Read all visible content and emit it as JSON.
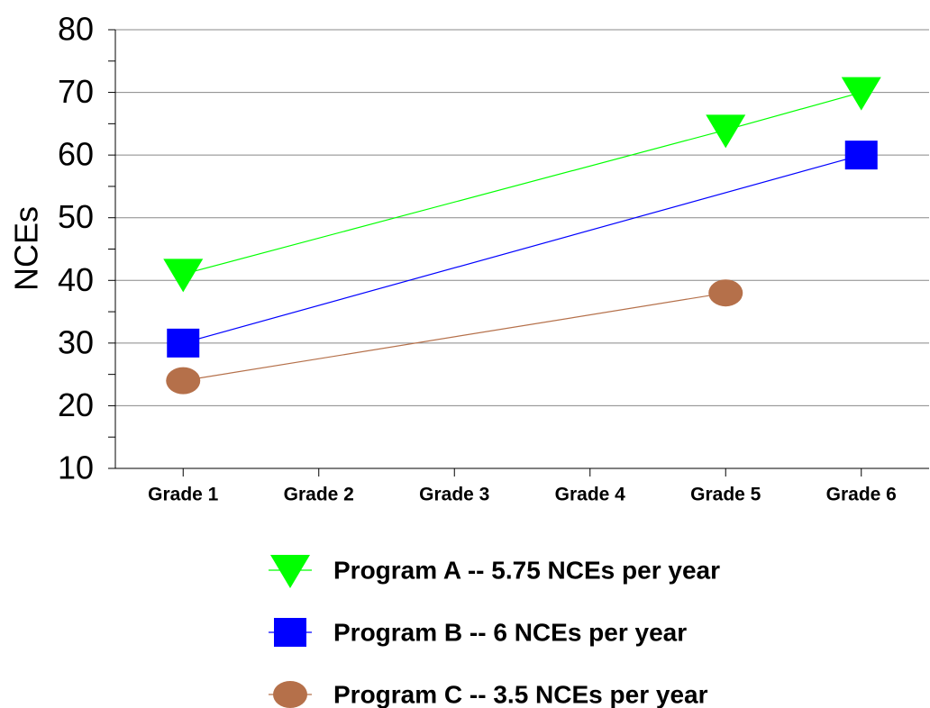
{
  "chart_data": {
    "type": "line",
    "y_label": "NCEs",
    "xlim": [
      0.5,
      6.5
    ],
    "xticks": [
      {
        "value": 1,
        "label": "Grade 1"
      },
      {
        "value": 2,
        "label": "Grade 2"
      },
      {
        "value": 3,
        "label": "Grade 3"
      },
      {
        "value": 4,
        "label": "Grade 4"
      },
      {
        "value": 5,
        "label": "Grade 5"
      },
      {
        "value": 6,
        "label": "Grade 6"
      }
    ],
    "ylim": [
      10,
      80
    ],
    "yticks": [
      10,
      20,
      30,
      40,
      50,
      60,
      70,
      80
    ],
    "grid": true,
    "series": [
      {
        "name": "Program A -- 5.75 NCEs per year",
        "color": "#00ff00",
        "marker": "triangle-down",
        "x": [
          1,
          5,
          6
        ],
        "values": [
          41,
          64,
          70
        ]
      },
      {
        "name": "Program B -- 6 NCEs per year",
        "color": "#0000ff",
        "marker": "square",
        "x": [
          1,
          6
        ],
        "values": [
          30,
          60
        ]
      },
      {
        "name": "Program C -- 3.5 NCEs per year",
        "color": "#b5704a",
        "marker": "circle",
        "x": [
          1,
          5
        ],
        "values": [
          24,
          38
        ]
      }
    ]
  }
}
